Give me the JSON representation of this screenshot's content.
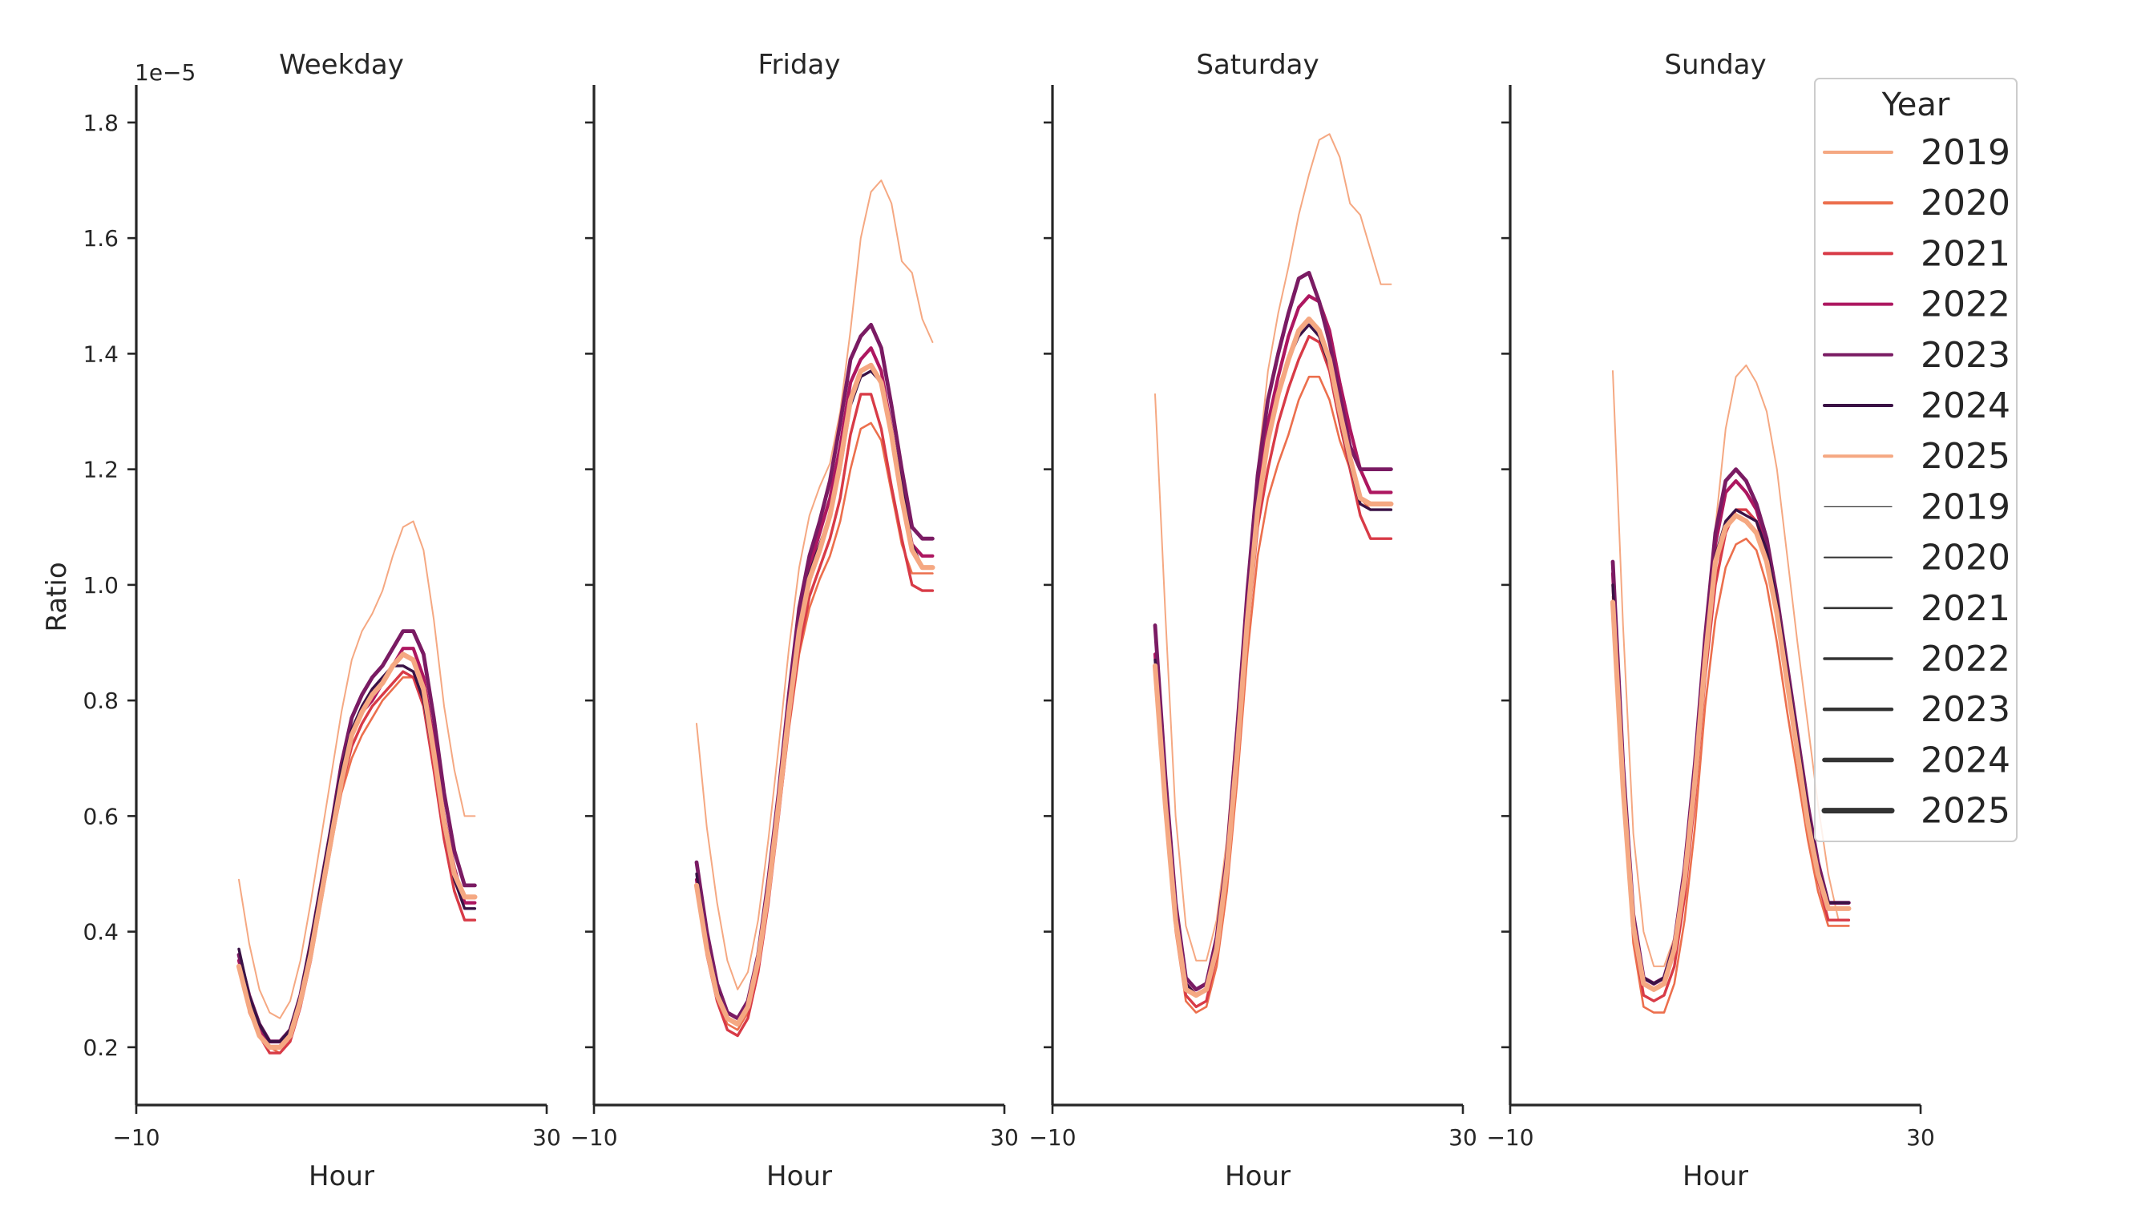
{
  "chart_data": {
    "type": "line",
    "ylabel": "Ratio",
    "xlabel": "Hour",
    "y_offset_label": "1e−5",
    "xlim": [
      -10,
      30
    ],
    "ylim": [
      0.1,
      1.865
    ],
    "x_ticks": [
      -10,
      30
    ],
    "x_tick_labels": [
      "−10",
      "30"
    ],
    "y_ticks": [
      0.2,
      0.4,
      0.6,
      0.8,
      1.0,
      1.2,
      1.4,
      1.6,
      1.8
    ],
    "y_tick_labels": [
      "0.2",
      "0.4",
      "0.6",
      "0.8",
      "1.0",
      "1.2",
      "1.4",
      "1.6",
      "1.8"
    ],
    "grid": false,
    "legend": {
      "title": "Year",
      "placement": "upper-right",
      "hue_entries": [
        {
          "label": "2019",
          "color": "#f5a882"
        },
        {
          "label": "2020",
          "color": "#ec6f4d"
        },
        {
          "label": "2021",
          "color": "#d83b47"
        },
        {
          "label": "2022",
          "color": "#ad1760"
        },
        {
          "label": "2023",
          "color": "#7a1b63"
        },
        {
          "label": "2024",
          "color": "#3a1245"
        },
        {
          "label": "2025",
          "color": "#f5a882"
        }
      ],
      "size_entries": [
        {
          "label": "2019",
          "width": 1.2
        },
        {
          "label": "2020",
          "width": 2
        },
        {
          "label": "2021",
          "width": 2.6
        },
        {
          "label": "2022",
          "width": 3.4
        },
        {
          "label": "2023",
          "width": 4.4
        },
        {
          "label": "2024",
          "width": 5.6
        },
        {
          "label": "2025",
          "width": 7
        }
      ]
    },
    "x": [
      0,
      1,
      2,
      3,
      4,
      5,
      6,
      7,
      8,
      9,
      10,
      11,
      12,
      13,
      14,
      15,
      16,
      17,
      18,
      19,
      20,
      21,
      22,
      23
    ],
    "panels": [
      {
        "title": "Weekday",
        "series": [
          {
            "year": "2019",
            "color": "#f5a882",
            "width": 2,
            "values": [
              0.49,
              0.38,
              0.3,
              0.26,
              0.25,
              0.28,
              0.35,
              0.45,
              0.56,
              0.67,
              0.78,
              0.87,
              0.92,
              0.95,
              0.99,
              1.05,
              1.1,
              1.11,
              1.06,
              0.94,
              0.79,
              0.68,
              0.6,
              0.6
            ]
          },
          {
            "year": "2020",
            "color": "#ec6f4d",
            "width": 2.6,
            "values": [
              0.34,
              0.26,
              0.22,
              0.2,
              0.19,
              0.21,
              0.27,
              0.35,
              0.45,
              0.55,
              0.64,
              0.7,
              0.74,
              0.77,
              0.8,
              0.82,
              0.84,
              0.84,
              0.8,
              0.7,
              0.58,
              0.49,
              0.44,
              0.44
            ]
          },
          {
            "year": "2021",
            "color": "#d83b47",
            "width": 3.4,
            "values": [
              0.35,
              0.27,
              0.22,
              0.19,
              0.19,
              0.21,
              0.27,
              0.35,
              0.45,
              0.55,
              0.65,
              0.72,
              0.76,
              0.79,
              0.81,
              0.83,
              0.85,
              0.84,
              0.79,
              0.68,
              0.56,
              0.47,
              0.42,
              0.42
            ]
          },
          {
            "year": "2022",
            "color": "#ad1760",
            "width": 4.2,
            "values": [
              0.35,
              0.28,
              0.23,
              0.2,
              0.2,
              0.22,
              0.28,
              0.37,
              0.47,
              0.57,
              0.67,
              0.74,
              0.78,
              0.8,
              0.83,
              0.86,
              0.89,
              0.89,
              0.84,
              0.73,
              0.6,
              0.51,
              0.45,
              0.45
            ]
          },
          {
            "year": "2023",
            "color": "#7a1b63",
            "width": 4.8,
            "values": [
              0.36,
              0.29,
              0.24,
              0.21,
              0.21,
              0.23,
              0.29,
              0.38,
              0.48,
              0.58,
              0.69,
              0.77,
              0.81,
              0.84,
              0.86,
              0.89,
              0.92,
              0.92,
              0.88,
              0.77,
              0.64,
              0.54,
              0.48,
              0.48
            ]
          },
          {
            "year": "2024",
            "color": "#3a1245",
            "width": 3.4,
            "values": [
              0.37,
              0.29,
              0.24,
              0.21,
              0.21,
              0.23,
              0.29,
              0.38,
              0.48,
              0.58,
              0.68,
              0.75,
              0.79,
              0.82,
              0.84,
              0.86,
              0.86,
              0.85,
              0.8,
              0.7,
              0.58,
              0.49,
              0.44,
              0.44
            ]
          },
          {
            "year": "2025",
            "color": "#f5a882",
            "width": 6.2,
            "values": [
              0.34,
              0.27,
              0.22,
              0.2,
              0.2,
              0.22,
              0.28,
              0.36,
              0.46,
              0.56,
              0.66,
              0.74,
              0.78,
              0.81,
              0.83,
              0.86,
              0.88,
              0.87,
              0.82,
              0.71,
              0.59,
              0.5,
              0.46,
              0.46
            ]
          }
        ]
      },
      {
        "title": "Friday",
        "series": [
          {
            "year": "2019",
            "color": "#f5a882",
            "width": 2,
            "values": [
              0.76,
              0.58,
              0.45,
              0.35,
              0.3,
              0.33,
              0.42,
              0.56,
              0.72,
              0.89,
              1.03,
              1.12,
              1.17,
              1.21,
              1.3,
              1.44,
              1.6,
              1.68,
              1.7,
              1.66,
              1.56,
              1.54,
              1.46,
              1.42
            ]
          },
          {
            "year": "2020",
            "color": "#ec6f4d",
            "width": 2.6,
            "values": [
              0.47,
              0.36,
              0.28,
              0.24,
              0.23,
              0.26,
              0.34,
              0.46,
              0.6,
              0.75,
              0.88,
              0.96,
              1.01,
              1.05,
              1.11,
              1.2,
              1.27,
              1.28,
              1.25,
              1.16,
              1.07,
              1.02,
              1.02,
              1.02
            ]
          },
          {
            "year": "2021",
            "color": "#d83b47",
            "width": 3.4,
            "values": [
              0.48,
              0.36,
              0.28,
              0.23,
              0.22,
              0.25,
              0.33,
              0.45,
              0.6,
              0.76,
              0.89,
              0.98,
              1.03,
              1.08,
              1.15,
              1.26,
              1.33,
              1.33,
              1.27,
              1.17,
              1.08,
              1.0,
              0.99,
              0.99
            ]
          },
          {
            "year": "2022",
            "color": "#ad1760",
            "width": 4.2,
            "values": [
              0.49,
              0.38,
              0.3,
              0.25,
              0.24,
              0.27,
              0.35,
              0.48,
              0.63,
              0.8,
              0.94,
              1.03,
              1.09,
              1.15,
              1.24,
              1.35,
              1.39,
              1.41,
              1.37,
              1.27,
              1.16,
              1.07,
              1.05,
              1.05
            ]
          },
          {
            "year": "2023",
            "color": "#7a1b63",
            "width": 4.8,
            "values": [
              0.52,
              0.4,
              0.31,
              0.26,
              0.25,
              0.28,
              0.36,
              0.49,
              0.64,
              0.81,
              0.96,
              1.05,
              1.11,
              1.18,
              1.28,
              1.39,
              1.43,
              1.45,
              1.41,
              1.31,
              1.2,
              1.1,
              1.08,
              1.08
            ]
          },
          {
            "year": "2024",
            "color": "#3a1245",
            "width": 3.4,
            "values": [
              0.5,
              0.38,
              0.3,
              0.25,
              0.24,
              0.27,
              0.35,
              0.48,
              0.63,
              0.79,
              0.93,
              1.02,
              1.07,
              1.12,
              1.2,
              1.31,
              1.36,
              1.37,
              1.35,
              1.27,
              1.17,
              1.07,
              1.03,
              1.03
            ]
          },
          {
            "year": "2025",
            "color": "#f5a882",
            "width": 6.2,
            "values": [
              0.48,
              0.37,
              0.29,
              0.25,
              0.24,
              0.27,
              0.35,
              0.47,
              0.62,
              0.78,
              0.92,
              1.01,
              1.06,
              1.12,
              1.21,
              1.32,
              1.37,
              1.38,
              1.35,
              1.26,
              1.15,
              1.06,
              1.03,
              1.03
            ]
          }
        ]
      },
      {
        "title": "Saturday",
        "series": [
          {
            "year": "2019",
            "color": "#f5a882",
            "width": 2,
            "values": [
              1.33,
              0.95,
              0.6,
              0.41,
              0.35,
              0.35,
              0.42,
              0.56,
              0.77,
              1.0,
              1.2,
              1.37,
              1.47,
              1.55,
              1.64,
              1.71,
              1.77,
              1.78,
              1.74,
              1.66,
              1.64,
              1.58,
              1.52,
              1.52
            ]
          },
          {
            "year": "2020",
            "color": "#ec6f4d",
            "width": 2.6,
            "values": [
              0.84,
              0.6,
              0.4,
              0.28,
              0.26,
              0.27,
              0.34,
              0.47,
              0.66,
              0.88,
              1.05,
              1.15,
              1.21,
              1.26,
              1.32,
              1.36,
              1.36,
              1.32,
              1.25,
              1.2,
              1.15,
              1.13,
              1.13,
              1.13
            ]
          },
          {
            "year": "2021",
            "color": "#d83b47",
            "width": 3.4,
            "values": [
              0.85,
              0.61,
              0.41,
              0.29,
              0.27,
              0.28,
              0.36,
              0.5,
              0.7,
              0.92,
              1.1,
              1.2,
              1.28,
              1.34,
              1.39,
              1.43,
              1.42,
              1.37,
              1.28,
              1.2,
              1.12,
              1.08,
              1.08,
              1.08
            ]
          },
          {
            "year": "2022",
            "color": "#ad1760",
            "width": 4.2,
            "values": [
              0.88,
              0.63,
              0.43,
              0.31,
              0.29,
              0.3,
              0.38,
              0.52,
              0.73,
              0.96,
              1.15,
              1.28,
              1.36,
              1.43,
              1.48,
              1.5,
              1.49,
              1.44,
              1.35,
              1.27,
              1.2,
              1.16,
              1.16,
              1.16
            ]
          },
          {
            "year": "2023",
            "color": "#7a1b63",
            "width": 4.8,
            "values": [
              0.93,
              0.67,
              0.45,
              0.32,
              0.3,
              0.31,
              0.39,
              0.53,
              0.75,
              0.99,
              1.19,
              1.32,
              1.4,
              1.47,
              1.53,
              1.54,
              1.49,
              1.42,
              1.33,
              1.24,
              1.2,
              1.2,
              1.2,
              1.2
            ]
          },
          {
            "year": "2024",
            "color": "#3a1245",
            "width": 3.4,
            "values": [
              0.87,
              0.63,
              0.43,
              0.31,
              0.29,
              0.3,
              0.38,
              0.52,
              0.72,
              0.95,
              1.14,
              1.26,
              1.33,
              1.39,
              1.43,
              1.45,
              1.43,
              1.38,
              1.29,
              1.21,
              1.14,
              1.13,
              1.13,
              1.13
            ]
          },
          {
            "year": "2025",
            "color": "#f5a882",
            "width": 6.2,
            "values": [
              0.86,
              0.62,
              0.42,
              0.3,
              0.29,
              0.3,
              0.37,
              0.51,
              0.71,
              0.94,
              1.13,
              1.25,
              1.33,
              1.39,
              1.44,
              1.46,
              1.44,
              1.39,
              1.3,
              1.22,
              1.15,
              1.14,
              1.14,
              1.14
            ]
          }
        ]
      },
      {
        "title": "Sunday",
        "series": [
          {
            "year": "2019",
            "color": "#f5a882",
            "width": 2,
            "values": [
              1.37,
              0.93,
              0.57,
              0.4,
              0.34,
              0.34,
              0.39,
              0.5,
              0.68,
              0.9,
              1.1,
              1.27,
              1.36,
              1.38,
              1.35,
              1.3,
              1.2,
              1.05,
              0.9,
              0.76,
              0.62,
              0.5,
              0.42,
              0.42
            ]
          },
          {
            "year": "2020",
            "color": "#ec6f4d",
            "width": 2.6,
            "values": [
              0.98,
              0.64,
              0.38,
              0.27,
              0.26,
              0.26,
              0.31,
              0.42,
              0.58,
              0.79,
              0.94,
              1.03,
              1.07,
              1.08,
              1.06,
              1.0,
              0.9,
              0.78,
              0.67,
              0.56,
              0.47,
              0.41,
              0.41,
              0.41
            ]
          },
          {
            "year": "2021",
            "color": "#d83b47",
            "width": 3.4,
            "values": [
              1.0,
              0.66,
              0.4,
              0.29,
              0.28,
              0.29,
              0.34,
              0.46,
              0.63,
              0.84,
              1.0,
              1.09,
              1.13,
              1.13,
              1.11,
              1.05,
              0.95,
              0.83,
              0.71,
              0.59,
              0.49,
              0.42,
              0.42,
              0.42
            ]
          },
          {
            "year": "2022",
            "color": "#ad1760",
            "width": 4.2,
            "values": [
              1.02,
              0.68,
              0.42,
              0.31,
              0.3,
              0.31,
              0.37,
              0.49,
              0.67,
              0.89,
              1.07,
              1.16,
              1.18,
              1.16,
              1.13,
              1.07,
              0.97,
              0.85,
              0.73,
              0.61,
              0.51,
              0.44,
              0.44,
              0.44
            ]
          },
          {
            "year": "2023",
            "color": "#7a1b63",
            "width": 4.8,
            "values": [
              1.04,
              0.69,
              0.43,
              0.32,
              0.31,
              0.32,
              0.38,
              0.51,
              0.69,
              0.91,
              1.09,
              1.18,
              1.2,
              1.18,
              1.14,
              1.08,
              0.98,
              0.86,
              0.74,
              0.62,
              0.52,
              0.45,
              0.45,
              0.45
            ]
          },
          {
            "year": "2024",
            "color": "#3a1245",
            "width": 3.4,
            "values": [
              1.0,
              0.67,
              0.42,
              0.32,
              0.31,
              0.32,
              0.38,
              0.5,
              0.67,
              0.88,
              1.05,
              1.11,
              1.13,
              1.12,
              1.11,
              1.06,
              0.97,
              0.85,
              0.73,
              0.61,
              0.51,
              0.45,
              0.45,
              0.45
            ]
          },
          {
            "year": "2025",
            "color": "#f5a882",
            "width": 6.2,
            "values": [
              0.97,
              0.65,
              0.41,
              0.31,
              0.3,
              0.31,
              0.37,
              0.49,
              0.66,
              0.87,
              1.04,
              1.1,
              1.12,
              1.11,
              1.09,
              1.04,
              0.95,
              0.83,
              0.71,
              0.59,
              0.5,
              0.44,
              0.44,
              0.44
            ]
          }
        ]
      }
    ]
  }
}
